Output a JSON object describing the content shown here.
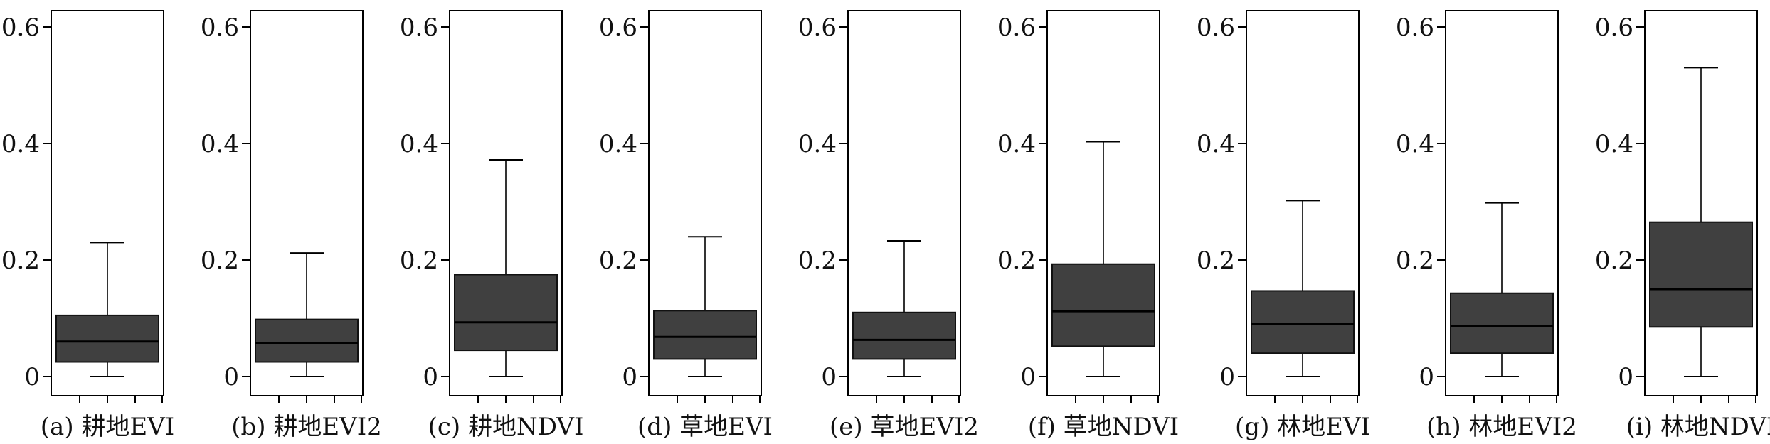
{
  "chart_data": [
    {
      "type": "box",
      "caption": "(a) 耕地EVI",
      "ylim": [
        0,
        0.6
      ],
      "yticks": [
        "0",
        "0.2",
        "0.4",
        "0.6"
      ],
      "box": {
        "min": 0,
        "q1": 0.025,
        "median": 0.06,
        "q3": 0.105,
        "max": 0.23
      },
      "colors": {
        "box": "#404040"
      }
    },
    {
      "type": "box",
      "caption": "(b) 耕地EVI2",
      "ylim": [
        0,
        0.6
      ],
      "yticks": [
        "0",
        "0.2",
        "0.4",
        "0.6"
      ],
      "box": {
        "min": 0,
        "q1": 0.025,
        "median": 0.058,
        "q3": 0.098,
        "max": 0.212
      },
      "colors": {
        "box": "#404040"
      }
    },
    {
      "type": "box",
      "caption": "(c) 耕地NDVI",
      "ylim": [
        0,
        0.6
      ],
      "yticks": [
        "0",
        "0.2",
        "0.4",
        "0.6"
      ],
      "box": {
        "min": 0,
        "q1": 0.045,
        "median": 0.093,
        "q3": 0.175,
        "max": 0.372
      },
      "colors": {
        "box": "#404040"
      }
    },
    {
      "type": "box",
      "caption": "(d) 草地EVI",
      "ylim": [
        0,
        0.6
      ],
      "yticks": [
        "0",
        "0.2",
        "0.4",
        "0.6"
      ],
      "box": {
        "min": 0,
        "q1": 0.03,
        "median": 0.068,
        "q3": 0.113,
        "max": 0.24
      },
      "colors": {
        "box": "#404040"
      }
    },
    {
      "type": "box",
      "caption": "(e) 草地EVI2",
      "ylim": [
        0,
        0.6
      ],
      "yticks": [
        "0",
        "0.2",
        "0.4",
        "0.6"
      ],
      "box": {
        "min": 0,
        "q1": 0.03,
        "median": 0.063,
        "q3": 0.11,
        "max": 0.233
      },
      "colors": {
        "box": "#404040"
      }
    },
    {
      "type": "box",
      "caption": "(f) 草地NDVI",
      "ylim": [
        0,
        0.6
      ],
      "yticks": [
        "0",
        "0.2",
        "0.4",
        "0.6"
      ],
      "box": {
        "min": 0,
        "q1": 0.052,
        "median": 0.112,
        "q3": 0.193,
        "max": 0.403
      },
      "colors": {
        "box": "#404040"
      }
    },
    {
      "type": "box",
      "caption": "(g) 林地EVI",
      "ylim": [
        0,
        0.6
      ],
      "yticks": [
        "0",
        "0.2",
        "0.4",
        "0.6"
      ],
      "box": {
        "min": 0,
        "q1": 0.04,
        "median": 0.09,
        "q3": 0.147,
        "max": 0.302
      },
      "colors": {
        "box": "#404040"
      }
    },
    {
      "type": "box",
      "caption": "(h) 林地EVI2",
      "ylim": [
        0,
        0.6
      ],
      "yticks": [
        "0",
        "0.2",
        "0.4",
        "0.6"
      ],
      "box": {
        "min": 0,
        "q1": 0.04,
        "median": 0.087,
        "q3": 0.143,
        "max": 0.298
      },
      "colors": {
        "box": "#404040"
      }
    },
    {
      "type": "box",
      "caption": "(i) 林地NDVI",
      "ylim": [
        0,
        0.6
      ],
      "yticks": [
        "0",
        "0.2",
        "0.4",
        "0.6"
      ],
      "box": {
        "min": 0,
        "q1": 0.085,
        "median": 0.15,
        "q3": 0.265,
        "max": 0.53
      },
      "colors": {
        "box": "#404040"
      }
    }
  ]
}
